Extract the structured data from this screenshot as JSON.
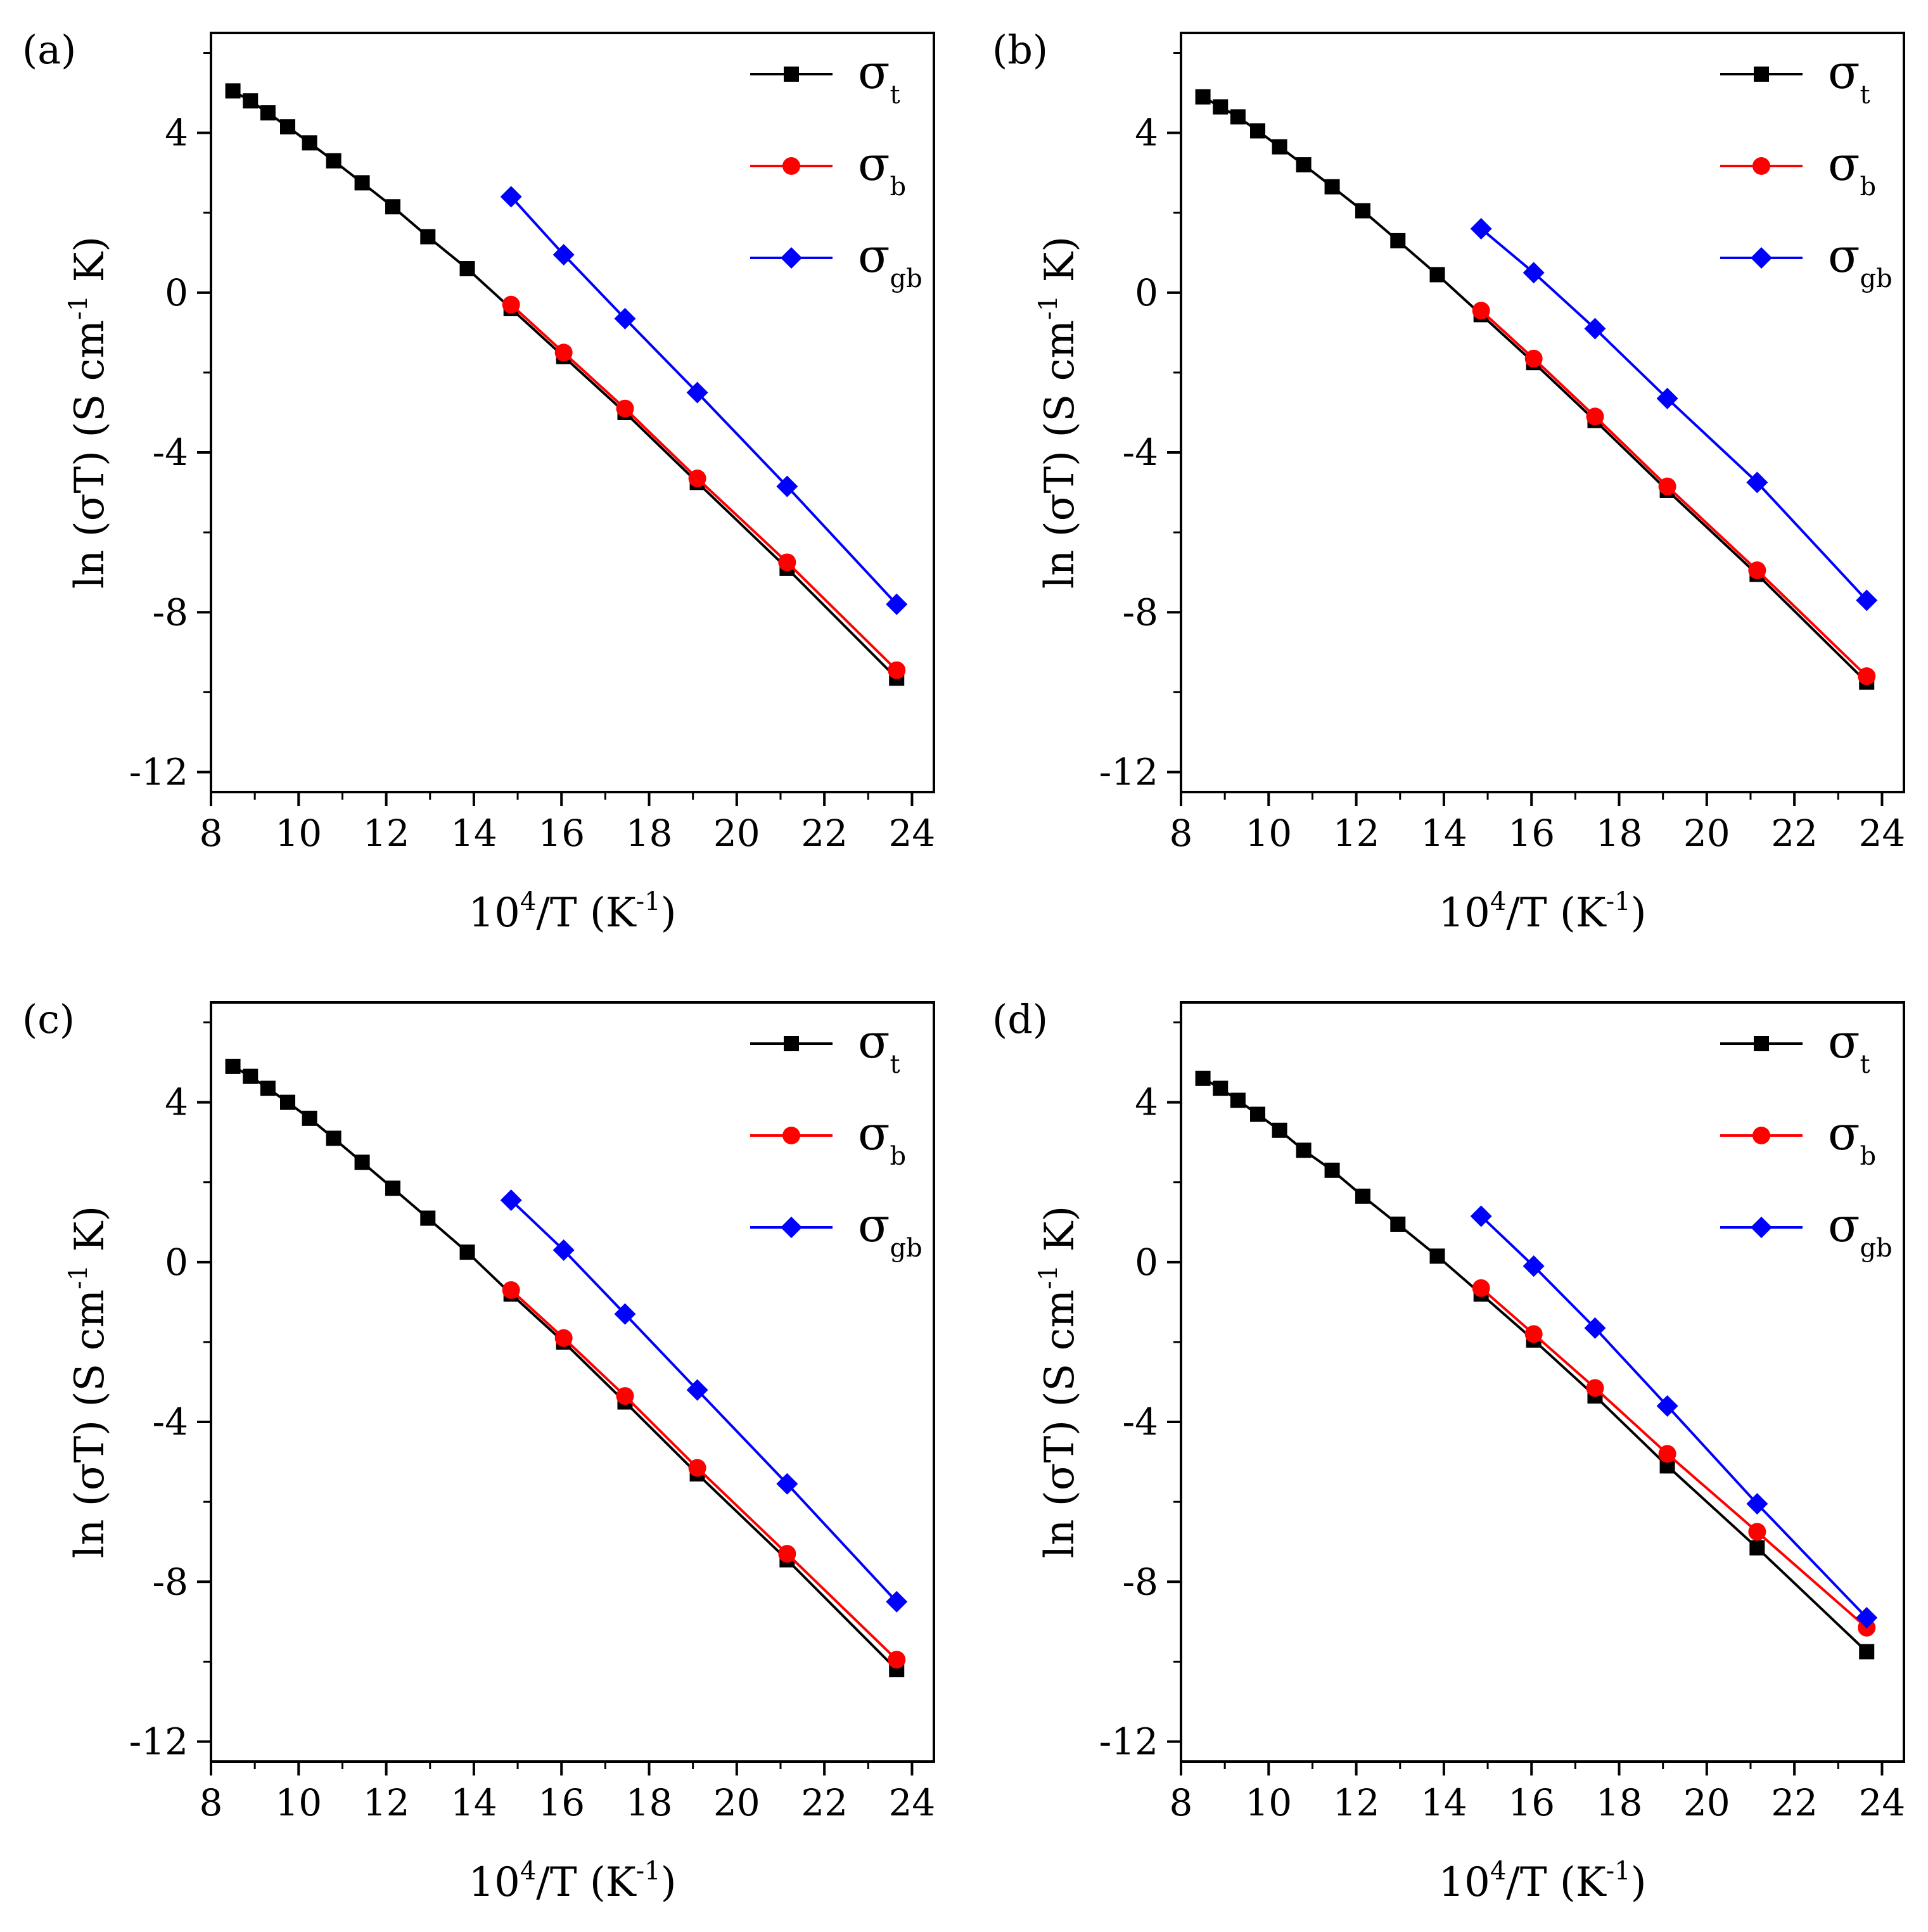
{
  "chart_data": [
    {
      "panel_label": "(a)",
      "type": "line",
      "xlabel": {
        "base": "10",
        "sup": "4",
        "mid": "/T (K",
        "sup2": "-1",
        "end": ")"
      },
      "ylabel": {
        "pre": "ln (σT) (S cm",
        "sup": "-1",
        "post": " K)"
      },
      "xlim": [
        8,
        24.5
      ],
      "ylim": [
        -12.5,
        6.5
      ],
      "xticks": [
        8,
        10,
        12,
        14,
        16,
        18,
        20,
        22,
        24
      ],
      "xtick_labels": [
        "8",
        "10",
        "12",
        "14",
        "16",
        "18",
        "20",
        "22",
        "24"
      ],
      "yticks": [
        -12,
        -8,
        -4,
        0,
        4
      ],
      "ytick_labels": [
        "-12",
        "-8",
        "-4",
        "0",
        "4"
      ],
      "series": [
        {
          "name": "σ",
          "sub": "t",
          "color": "#000000",
          "marker": "square",
          "x": [
            8.5,
            8.9,
            9.3,
            9.75,
            10.25,
            10.8,
            11.45,
            12.15,
            12.95,
            13.85,
            14.85,
            16.05,
            17.45,
            19.1,
            21.15,
            23.65
          ],
          "y": [
            5.05,
            4.8,
            4.5,
            4.15,
            3.75,
            3.3,
            2.75,
            2.15,
            1.4,
            0.6,
            -0.4,
            -1.6,
            -3.0,
            -4.75,
            -6.9,
            -9.65
          ]
        },
        {
          "name": "σ",
          "sub": "b",
          "color": "#ff0000",
          "marker": "circle",
          "x": [
            14.85,
            16.05,
            17.45,
            19.1,
            21.15,
            23.65
          ],
          "y": [
            -0.3,
            -1.5,
            -2.9,
            -4.65,
            -6.75,
            -9.45
          ]
        },
        {
          "name": "σ",
          "sub": "gb",
          "color": "#0000ff",
          "marker": "diamond",
          "x": [
            14.85,
            16.05,
            17.45,
            19.1,
            21.15,
            23.65
          ],
          "y": [
            2.4,
            0.95,
            -0.65,
            -2.5,
            -4.85,
            -7.8
          ]
        }
      ]
    },
    {
      "panel_label": "(b)",
      "type": "line",
      "xlabel": {
        "base": "10",
        "sup": "4",
        "mid": "/T (K",
        "sup2": "-1",
        "end": ")"
      },
      "ylabel": {
        "pre": "ln (σT) (S cm",
        "sup": "-1",
        "post": " K)"
      },
      "xlim": [
        8,
        24.5
      ],
      "ylim": [
        -12.5,
        6.5
      ],
      "xticks": [
        8,
        10,
        12,
        14,
        16,
        18,
        20,
        22,
        24
      ],
      "xtick_labels": [
        "8",
        "10",
        "12",
        "14",
        "16",
        "18",
        "20",
        "22",
        "24"
      ],
      "yticks": [
        -12,
        -8,
        -4,
        0,
        4
      ],
      "ytick_labels": [
        "-12",
        "-8",
        "-4",
        "0",
        "4"
      ],
      "series": [
        {
          "name": "σ",
          "sub": "t",
          "color": "#000000",
          "marker": "square",
          "x": [
            8.5,
            8.9,
            9.3,
            9.75,
            10.25,
            10.8,
            11.45,
            12.15,
            12.95,
            13.85,
            14.85,
            16.05,
            17.45,
            19.1,
            21.15,
            23.65
          ],
          "y": [
            4.9,
            4.65,
            4.4,
            4.05,
            3.65,
            3.2,
            2.65,
            2.05,
            1.3,
            0.45,
            -0.55,
            -1.75,
            -3.2,
            -4.95,
            -7.05,
            -9.75
          ]
        },
        {
          "name": "σ",
          "sub": "b",
          "color": "#ff0000",
          "marker": "circle",
          "x": [
            14.85,
            16.05,
            17.45,
            19.1,
            21.15,
            23.65
          ],
          "y": [
            -0.45,
            -1.65,
            -3.1,
            -4.85,
            -6.95,
            -9.6
          ]
        },
        {
          "name": "σ",
          "sub": "gb",
          "color": "#0000ff",
          "marker": "diamond",
          "x": [
            14.85,
            16.05,
            17.45,
            19.1,
            21.15,
            23.65
          ],
          "y": [
            1.6,
            0.5,
            -0.9,
            -2.65,
            -4.75,
            -7.7
          ]
        }
      ]
    },
    {
      "panel_label": "(c)",
      "type": "line",
      "xlabel": {
        "base": "10",
        "sup": "4",
        "mid": "/T (K",
        "sup2": "-1",
        "end": ")"
      },
      "ylabel": {
        "pre": "ln (σT) (S cm",
        "sup": "-1",
        "post": " K)"
      },
      "xlim": [
        8,
        24.5
      ],
      "ylim": [
        -12.5,
        6.5
      ],
      "xticks": [
        8,
        10,
        12,
        14,
        16,
        18,
        20,
        22,
        24
      ],
      "xtick_labels": [
        "8",
        "10",
        "12",
        "14",
        "16",
        "18",
        "20",
        "22",
        "24"
      ],
      "yticks": [
        -12,
        -8,
        -4,
        0,
        4
      ],
      "ytick_labels": [
        "-12",
        "-8",
        "-4",
        "0",
        "4"
      ],
      "series": [
        {
          "name": "σ",
          "sub": "t",
          "color": "#000000",
          "marker": "square",
          "x": [
            8.5,
            8.9,
            9.3,
            9.75,
            10.25,
            10.8,
            11.45,
            12.15,
            12.95,
            13.85,
            14.85,
            16.05,
            17.45,
            19.1,
            21.15,
            23.65
          ],
          "y": [
            4.9,
            4.65,
            4.35,
            4.0,
            3.6,
            3.1,
            2.5,
            1.85,
            1.1,
            0.25,
            -0.8,
            -2.0,
            -3.5,
            -5.3,
            -7.45,
            -10.2
          ]
        },
        {
          "name": "σ",
          "sub": "b",
          "color": "#ff0000",
          "marker": "circle",
          "x": [
            14.85,
            16.05,
            17.45,
            19.1,
            21.15,
            23.65
          ],
          "y": [
            -0.7,
            -1.9,
            -3.35,
            -5.15,
            -7.3,
            -9.95
          ]
        },
        {
          "name": "σ",
          "sub": "gb",
          "color": "#0000ff",
          "marker": "diamond",
          "x": [
            14.85,
            16.05,
            17.45,
            19.1,
            21.15,
            23.65
          ],
          "y": [
            1.55,
            0.3,
            -1.3,
            -3.2,
            -5.55,
            -8.5
          ]
        }
      ]
    },
    {
      "panel_label": "(d)",
      "type": "line",
      "xlabel": {
        "base": "10",
        "sup": "4",
        "mid": "/T (K",
        "sup2": "-1",
        "end": ")"
      },
      "ylabel": {
        "pre": "ln (σT) (S cm",
        "sup": "-1",
        "post": " K)"
      },
      "xlim": [
        8,
        24.5
      ],
      "ylim": [
        -12.5,
        6.5
      ],
      "xticks": [
        8,
        10,
        12,
        14,
        16,
        18,
        20,
        22,
        24
      ],
      "xtick_labels": [
        "8",
        "10",
        "12",
        "14",
        "16",
        "18",
        "20",
        "22",
        "24"
      ],
      "yticks": [
        -12,
        -8,
        -4,
        0,
        4
      ],
      "ytick_labels": [
        "-12",
        "-8",
        "-4",
        "0",
        "4"
      ],
      "series": [
        {
          "name": "σ",
          "sub": "t",
          "color": "#000000",
          "marker": "square",
          "x": [
            8.5,
            8.9,
            9.3,
            9.75,
            10.25,
            10.8,
            11.45,
            12.15,
            12.95,
            13.85,
            14.85,
            16.05,
            17.45,
            19.1,
            21.15,
            23.65
          ],
          "y": [
            4.6,
            4.35,
            4.05,
            3.7,
            3.3,
            2.8,
            2.3,
            1.65,
            0.95,
            0.15,
            -0.8,
            -1.95,
            -3.35,
            -5.1,
            -7.15,
            -9.75
          ]
        },
        {
          "name": "σ",
          "sub": "b",
          "color": "#ff0000",
          "marker": "circle",
          "x": [
            14.85,
            16.05,
            17.45,
            19.1,
            21.15,
            23.65
          ],
          "y": [
            -0.65,
            -1.8,
            -3.15,
            -4.8,
            -6.75,
            -9.15
          ]
        },
        {
          "name": "σ",
          "sub": "gb",
          "color": "#0000ff",
          "marker": "diamond",
          "x": [
            14.85,
            16.05,
            17.45,
            19.1,
            21.15,
            23.65
          ],
          "y": [
            1.15,
            -0.1,
            -1.65,
            -3.6,
            -6.05,
            -8.9
          ]
        }
      ]
    }
  ]
}
